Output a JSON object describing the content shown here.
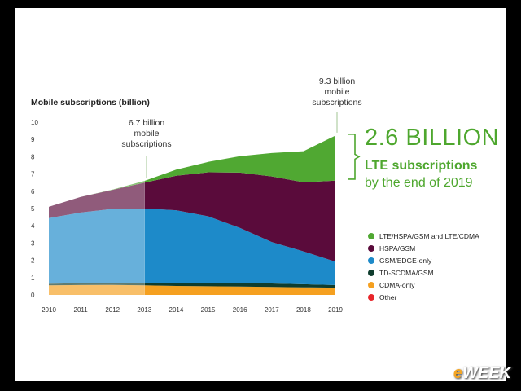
{
  "chart_data": {
    "type": "area",
    "ylabel": "Mobile subscriptions (billion)",
    "x": [
      2010,
      2011,
      2012,
      2013,
      2014,
      2015,
      2016,
      2017,
      2018,
      2019
    ],
    "yticks": [
      0,
      1,
      2,
      3,
      4,
      5,
      6,
      7,
      8,
      9,
      10
    ],
    "ylim": [
      0,
      10
    ],
    "stacking": "stacked",
    "series": [
      {
        "name": "Other",
        "color": "#e8262b",
        "values": [
          0,
          0,
          0,
          0,
          0,
          0,
          0,
          0,
          0,
          0
        ]
      },
      {
        "name": "CDMA-only",
        "color": "#f5a020",
        "values": [
          0.55,
          0.57,
          0.58,
          0.55,
          0.52,
          0.5,
          0.48,
          0.46,
          0.44,
          0.42
        ]
      },
      {
        "name": "TD-SCDMA/GSM",
        "color": "#0f3d2e",
        "values": [
          0.1,
          0.1,
          0.1,
          0.15,
          0.18,
          0.2,
          0.2,
          0.2,
          0.18,
          0.15
        ]
      },
      {
        "name": "GSM/EDGE-only",
        "color": "#1d8ac9",
        "values": [
          3.8,
          4.1,
          4.3,
          4.3,
          4.2,
          3.85,
          3.2,
          2.4,
          1.9,
          1.35
        ]
      },
      {
        "name": "HSPA/GSM",
        "color": "#5a0b3b",
        "values": [
          0.65,
          0.9,
          1.1,
          1.5,
          2.0,
          2.55,
          3.2,
          3.8,
          4.0,
          4.7
        ]
      },
      {
        "name": "LTE/HSPA/GSM and LTE/CDMA",
        "color": "#50a832",
        "values": [
          0,
          0,
          0.02,
          0.1,
          0.35,
          0.6,
          0.95,
          1.35,
          1.8,
          2.6
        ]
      }
    ],
    "annotations": [
      {
        "text": "6.7 billion mobile subscriptions"
      },
      {
        "text": "9.3 billion mobile subscriptions"
      },
      {
        "text": "2.6 BILLION LTE subscriptions by the end of 2019"
      }
    ],
    "legend_position": "right"
  },
  "text": {
    "ylabel": "Mobile subscriptions (billion)",
    "callout_2013_l1": "6.7 billion",
    "callout_2013_l2": "mobile",
    "callout_2013_l3": "subscriptions",
    "callout_2019_l1": "9.3 billion",
    "callout_2019_l2": "mobile",
    "callout_2019_l3": "subscriptions",
    "big": "2.6 BILLION",
    "sub_l1": "LTE subscriptions",
    "sub_l2": "by the end of 2019",
    "legend": [
      "LTE/HSPA/GSM and LTE/CDMA",
      "HSPA/GSM",
      "GSM/EDGE-only",
      "TD-SCDMA/GSM",
      "CDMA-only",
      "Other"
    ],
    "brand_e": "e",
    "brand_rest": "WEEK"
  },
  "colors": {
    "accent": "#4ea72e",
    "lte": "#50a832",
    "hspa": "#5a0b3b",
    "gsm": "#1d8ac9",
    "tdscdma": "#0f3d2e",
    "cdma": "#f5a020",
    "other": "#e8262b"
  }
}
